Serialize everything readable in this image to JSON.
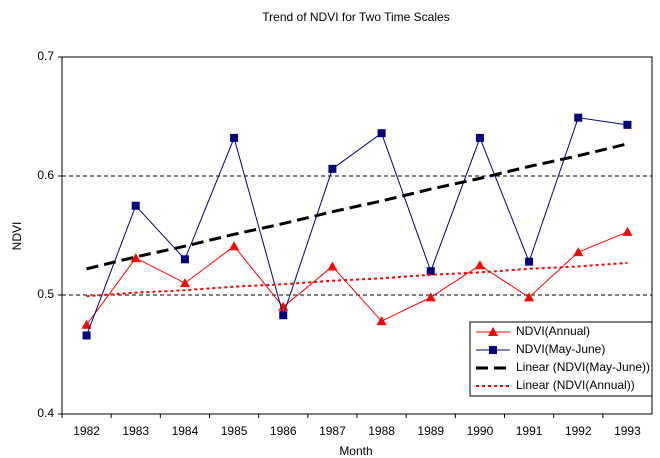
{
  "chart_data": {
    "type": "line",
    "title": "Trend of NDVI for Two Time Scales",
    "x_label": "Month",
    "y_label": "NDVI",
    "categories": [
      "1982",
      "1983",
      "1984",
      "1985",
      "1986",
      "1987",
      "1988",
      "1989",
      "1990",
      "1991",
      "1992",
      "1993"
    ],
    "ylim": [
      0.4,
      0.7
    ],
    "yticks": [
      0.4,
      0.5,
      0.6,
      0.7
    ],
    "grid": true,
    "legend": "lower right",
    "series": [
      {
        "name": "NDVI(Annual)",
        "color": "#ff0000",
        "marker": "triangle",
        "dash": "solid",
        "values": [
          0.475,
          0.531,
          0.51,
          0.541,
          0.49,
          0.524,
          0.478,
          0.498,
          0.525,
          0.498,
          0.536,
          0.553
        ]
      },
      {
        "name": "NDVI(May-June)",
        "color": "#000080",
        "marker": "square",
        "dash": "solid",
        "values": [
          0.466,
          0.575,
          0.53,
          0.632,
          0.483,
          0.606,
          0.636,
          0.52,
          0.632,
          0.528,
          0.649,
          0.643
        ]
      },
      {
        "name": "Linear (NDVI(May-June))",
        "color": "#000000",
        "marker": "none",
        "dash": "long",
        "values": [
          0.522,
          0.532,
          0.541,
          0.551,
          0.56,
          0.57,
          0.579,
          0.589,
          0.598,
          0.608,
          0.617,
          0.627
        ]
      },
      {
        "name": "Linear (NDVI(Annual))",
        "color": "#ff0000",
        "marker": "none",
        "dash": "dotted",
        "values": [
          0.499,
          0.502,
          0.504,
          0.507,
          0.509,
          0.512,
          0.514,
          0.517,
          0.519,
          0.522,
          0.524,
          0.527
        ]
      }
    ]
  }
}
